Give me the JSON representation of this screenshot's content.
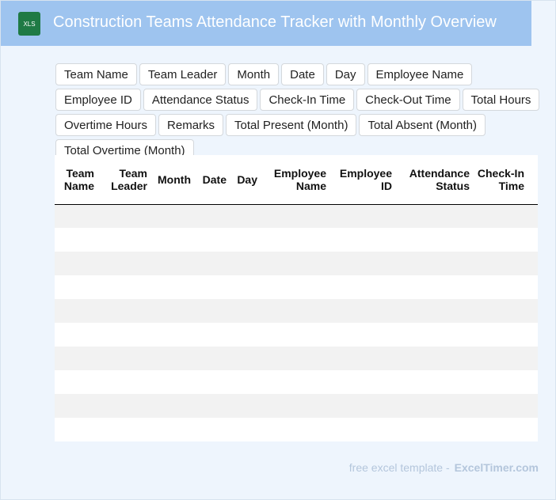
{
  "header": {
    "title": "Construction Teams Attendance Tracker with Monthly Overview",
    "icon": "XLS"
  },
  "fields": [
    "Team Name",
    "Team Leader",
    "Month",
    "Date",
    "Day",
    "Employee Name",
    "Employee ID",
    "Attendance Status",
    "Check-In Time",
    "Check-Out Time",
    "Total Hours",
    "Overtime Hours",
    "Remarks",
    "Total Present (Month)",
    "Total Absent (Month)",
    "Total Overtime (Month)"
  ],
  "table": {
    "headers": [
      "Team Name",
      "Team Leader",
      "Month",
      "Date",
      "Day",
      "Employee Name",
      "Employee ID",
      "Attendance Status",
      "Check-In Time"
    ]
  },
  "footer": {
    "text": "free excel template -",
    "brand": "ExcelTimer.com"
  }
}
